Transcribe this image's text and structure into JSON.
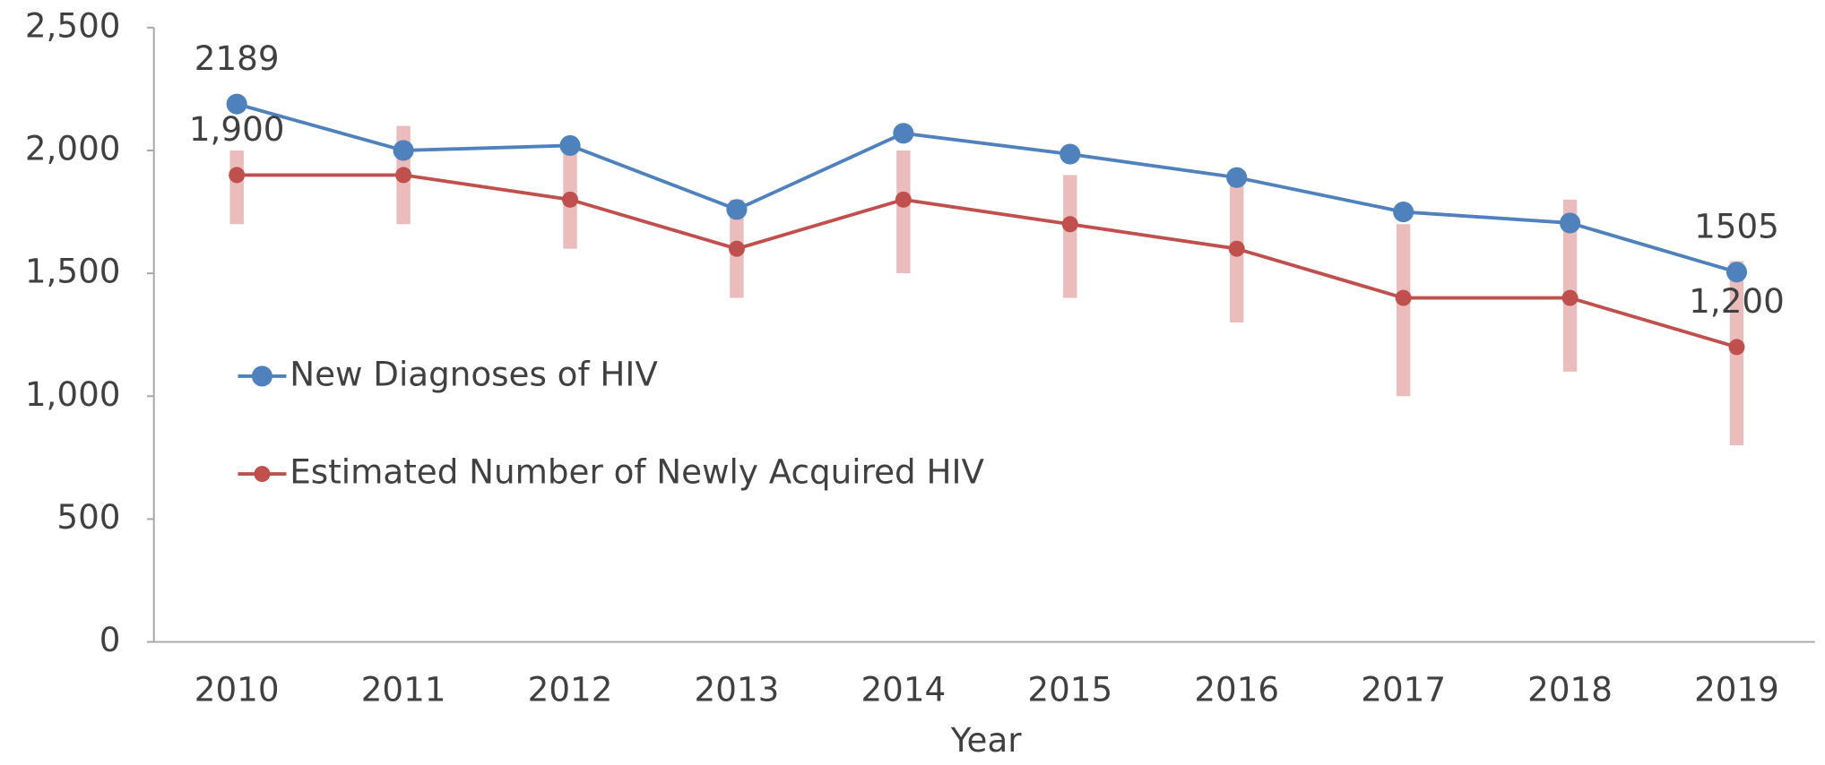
{
  "chart_data": {
    "type": "line",
    "x_label": "Year",
    "categories": [
      "2010",
      "2011",
      "2012",
      "2013",
      "2014",
      "2015",
      "2016",
      "2017",
      "2018",
      "2019"
    ],
    "series": [
      {
        "name": "New Diagnoses of HIV",
        "color": "#4f81bd",
        "values": [
          2189,
          2000,
          2020,
          1760,
          2070,
          1985,
          1890,
          1750,
          1705,
          1505
        ],
        "value_labels": [
          "2189",
          null,
          null,
          null,
          null,
          null,
          null,
          null,
          null,
          "1505"
        ]
      },
      {
        "name": "Estimated Number of Newly Acquired HIV",
        "color": "#c0504d",
        "error_color": "#e6b0b0",
        "values": [
          1900,
          1900,
          1800,
          1600,
          1800,
          1700,
          1600,
          1400,
          1400,
          1200
        ],
        "ci_low": [
          1700,
          1700,
          1600,
          1400,
          1500,
          1400,
          1300,
          1000,
          1100,
          800
        ],
        "ci_high": [
          2000,
          2100,
          2000,
          1800,
          2000,
          1900,
          1900,
          1700,
          1800,
          1550
        ],
        "value_labels": [
          "1,900",
          null,
          null,
          null,
          null,
          null,
          null,
          null,
          null,
          "1,200"
        ]
      }
    ],
    "ylim": [
      0,
      2500
    ],
    "yticks": [
      0,
      500,
      {
        "value": 1000,
        "label": "1,000"
      },
      {
        "value": 1500,
        "label": "1,500"
      },
      {
        "value": 2000,
        "label": "2,000"
      },
      {
        "value": 2500,
        "label": "2,500"
      }
    ],
    "grid": false,
    "legend": "left"
  }
}
